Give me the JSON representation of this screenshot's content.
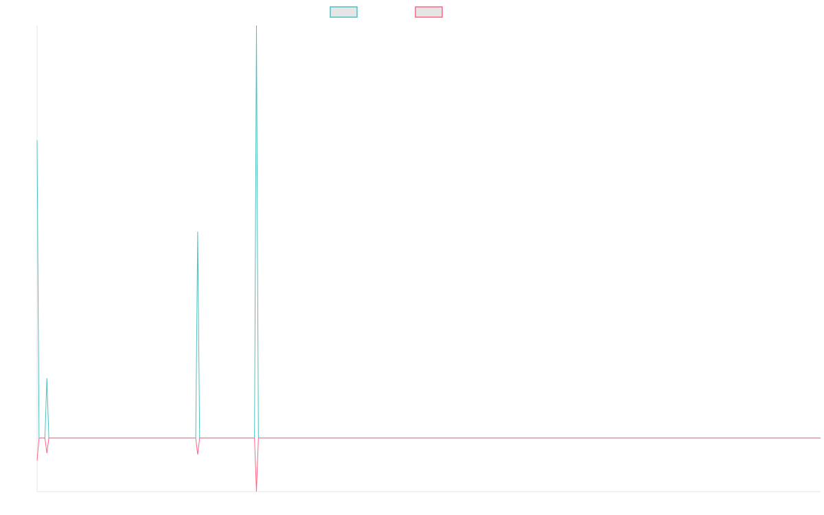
{
  "chart_data": {
    "type": "line",
    "title": "",
    "xlabel": "",
    "ylabel": "",
    "xlim": [
      0,
      400
    ],
    "ylim": [
      -78,
      600
    ],
    "grid": false,
    "legend_position": "top",
    "series": [
      {
        "color": "#4bc0c0",
        "points": [
          [
            0,
            433
          ],
          [
            1,
            0
          ],
          [
            4,
            0
          ],
          [
            5,
            87
          ],
          [
            6,
            0
          ],
          [
            81,
            0
          ],
          [
            82,
            300
          ],
          [
            83,
            0
          ],
          [
            111,
            0
          ],
          [
            112,
            600
          ],
          [
            113,
            0
          ],
          [
            400,
            0
          ]
        ]
      },
      {
        "color": "#ff6384",
        "points": [
          [
            0,
            -33
          ],
          [
            1,
            0
          ],
          [
            4,
            0
          ],
          [
            5,
            -22
          ],
          [
            6,
            0
          ],
          [
            81,
            0
          ],
          [
            82,
            -24
          ],
          [
            83,
            0
          ],
          [
            111,
            0
          ],
          [
            112,
            -78
          ],
          [
            113,
            0
          ],
          [
            400,
            0
          ]
        ]
      }
    ],
    "legend": [
      {
        "color": "#4bc0c0",
        "fill": "#e5e5e5"
      },
      {
        "color": "#ff6384",
        "fill": "#e5e5e5"
      }
    ],
    "axis_color": "#e5e5e5"
  }
}
